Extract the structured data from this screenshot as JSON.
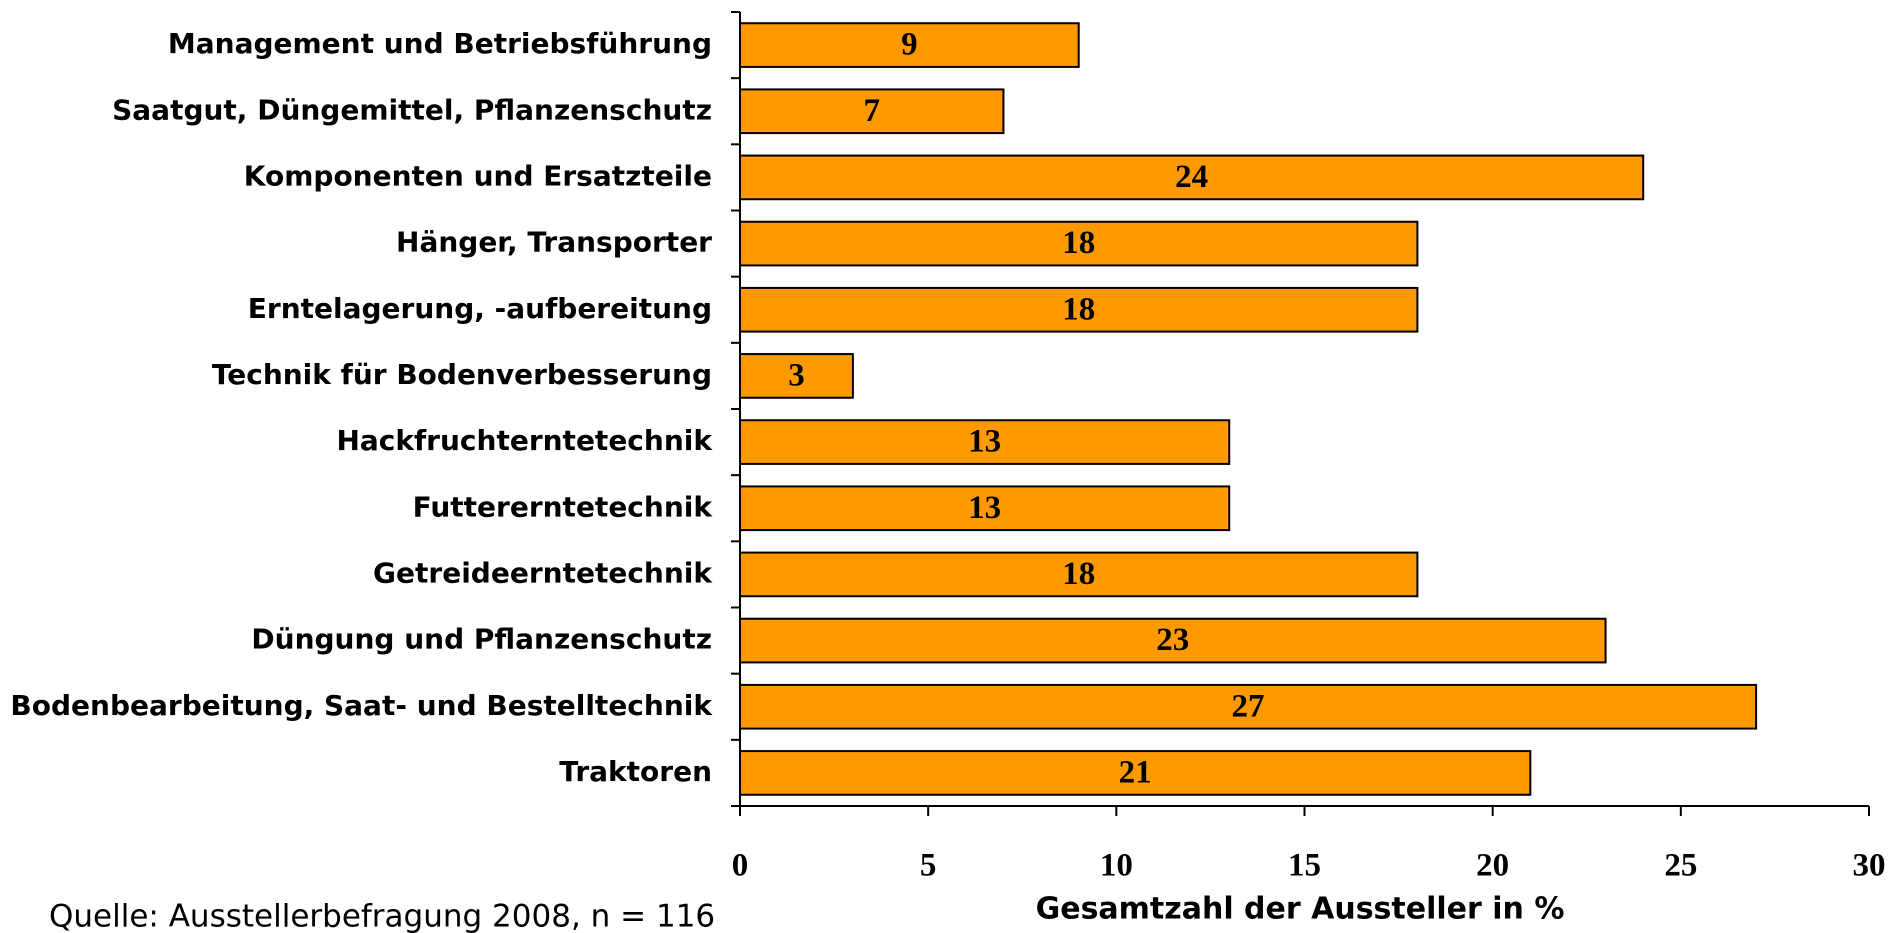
{
  "chart_data": {
    "type": "barh",
    "categories": [
      "Management und Betriebsführung",
      "Saatgut, Düngemittel, Pflanzenschutz",
      "Komponenten und Ersatzteile",
      "Hänger, Transporter",
      "Erntelagerung, -aufbereitung",
      "Technik für Bodenverbesserung",
      "Hackfruchterntetechnik",
      "Futtererntetechnik",
      "Getreideerntetechnik",
      "Düngung und Pflanzenschutz",
      "Bodenbearbeitung, Saat- und Bestelltechnik",
      "Traktoren"
    ],
    "values": [
      9,
      7,
      24,
      18,
      18,
      3,
      13,
      13,
      18,
      23,
      27,
      21
    ],
    "color": "#ff9900",
    "xlim": [
      0,
      30
    ],
    "xticks": [
      0,
      5,
      10,
      15,
      20,
      25,
      30
    ],
    "xlabel": "Gesamtzahl der Aussteller in %",
    "source": "Quelle: Ausstellerbefragung 2008, n = 116"
  }
}
